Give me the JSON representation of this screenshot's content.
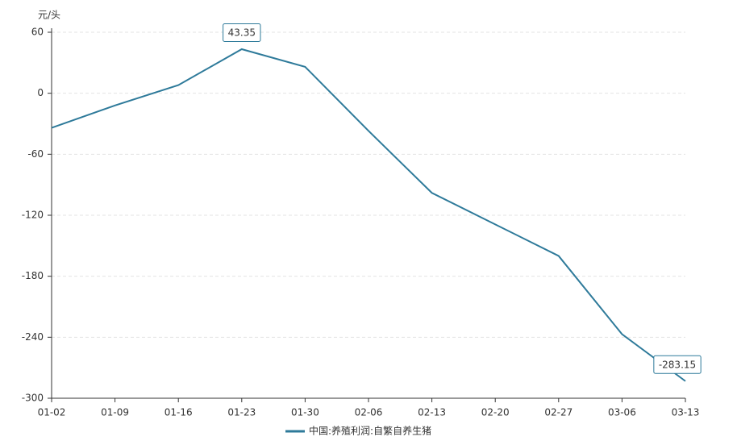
{
  "chart_data": {
    "type": "line",
    "y_label": "元/头",
    "categories": [
      "01-02",
      "01-09",
      "01-16",
      "01-23",
      "01-30",
      "02-06",
      "02-13",
      "02-20",
      "02-27",
      "03-06",
      "03-13"
    ],
    "series": [
      {
        "name": "中国:养殖利润:自繁自养生猪",
        "color": "#2e7a9a",
        "values": [
          -34,
          -12,
          8,
          43.35,
          26,
          -37,
          -98,
          -129,
          -160,
          -237,
          -283.15
        ],
        "value_labels": [
          null,
          null,
          null,
          "43.35",
          null,
          null,
          null,
          null,
          null,
          null,
          "-283.15"
        ]
      }
    ],
    "ylim": [
      -300,
      60
    ],
    "yticks": [
      -300,
      -240,
      -180,
      -120,
      -60,
      0,
      60
    ],
    "grid": true
  }
}
